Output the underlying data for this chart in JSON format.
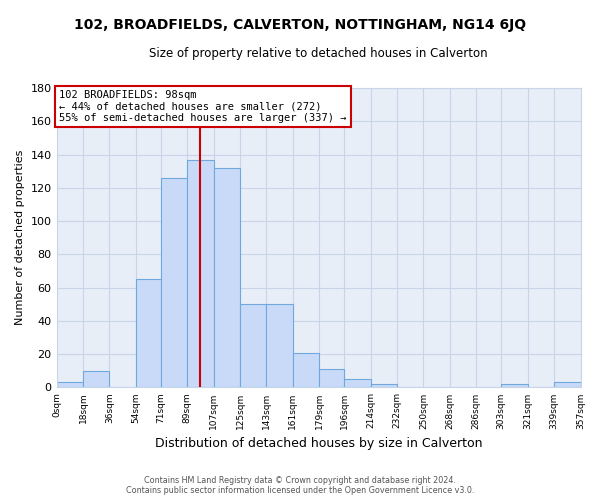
{
  "title": "102, BROADFIELDS, CALVERTON, NOTTINGHAM, NG14 6JQ",
  "subtitle": "Size of property relative to detached houses in Calverton",
  "xlabel": "Distribution of detached houses by size in Calverton",
  "ylabel": "Number of detached properties",
  "bar_edges": [
    0,
    18,
    36,
    54,
    71,
    89,
    107,
    125,
    143,
    161,
    179,
    196,
    214,
    232,
    250,
    268,
    286,
    303,
    321,
    339,
    357
  ],
  "bar_heights": [
    3,
    10,
    0,
    65,
    126,
    137,
    132,
    50,
    50,
    21,
    11,
    5,
    2,
    0,
    0,
    0,
    0,
    2,
    0,
    3
  ],
  "bar_color": "#c9daf8",
  "bar_edgecolor": "#6fa8dc",
  "tick_labels": [
    "0sqm",
    "18sqm",
    "36sqm",
    "54sqm",
    "71sqm",
    "89sqm",
    "107sqm",
    "125sqm",
    "143sqm",
    "161sqm",
    "179sqm",
    "196sqm",
    "214sqm",
    "232sqm",
    "250sqm",
    "268sqm",
    "286sqm",
    "303sqm",
    "321sqm",
    "339sqm",
    "357sqm"
  ],
  "property_value": 98,
  "vline_color": "#cc0000",
  "annotation_title": "102 BROADFIELDS: 98sqm",
  "annotation_line1": "← 44% of detached houses are smaller (272)",
  "annotation_line2": "55% of semi-detached houses are larger (337) →",
  "annotation_box_edgecolor": "#cc0000",
  "ylim": [
    0,
    180
  ],
  "yticks": [
    0,
    20,
    40,
    60,
    80,
    100,
    120,
    140,
    160,
    180
  ],
  "grid_color": "#c8d4e8",
  "background_color": "#ffffff",
  "plot_bg_color": "#e8eef8",
  "footer_line1": "Contains HM Land Registry data © Crown copyright and database right 2024.",
  "footer_line2": "Contains public sector information licensed under the Open Government Licence v3.0."
}
